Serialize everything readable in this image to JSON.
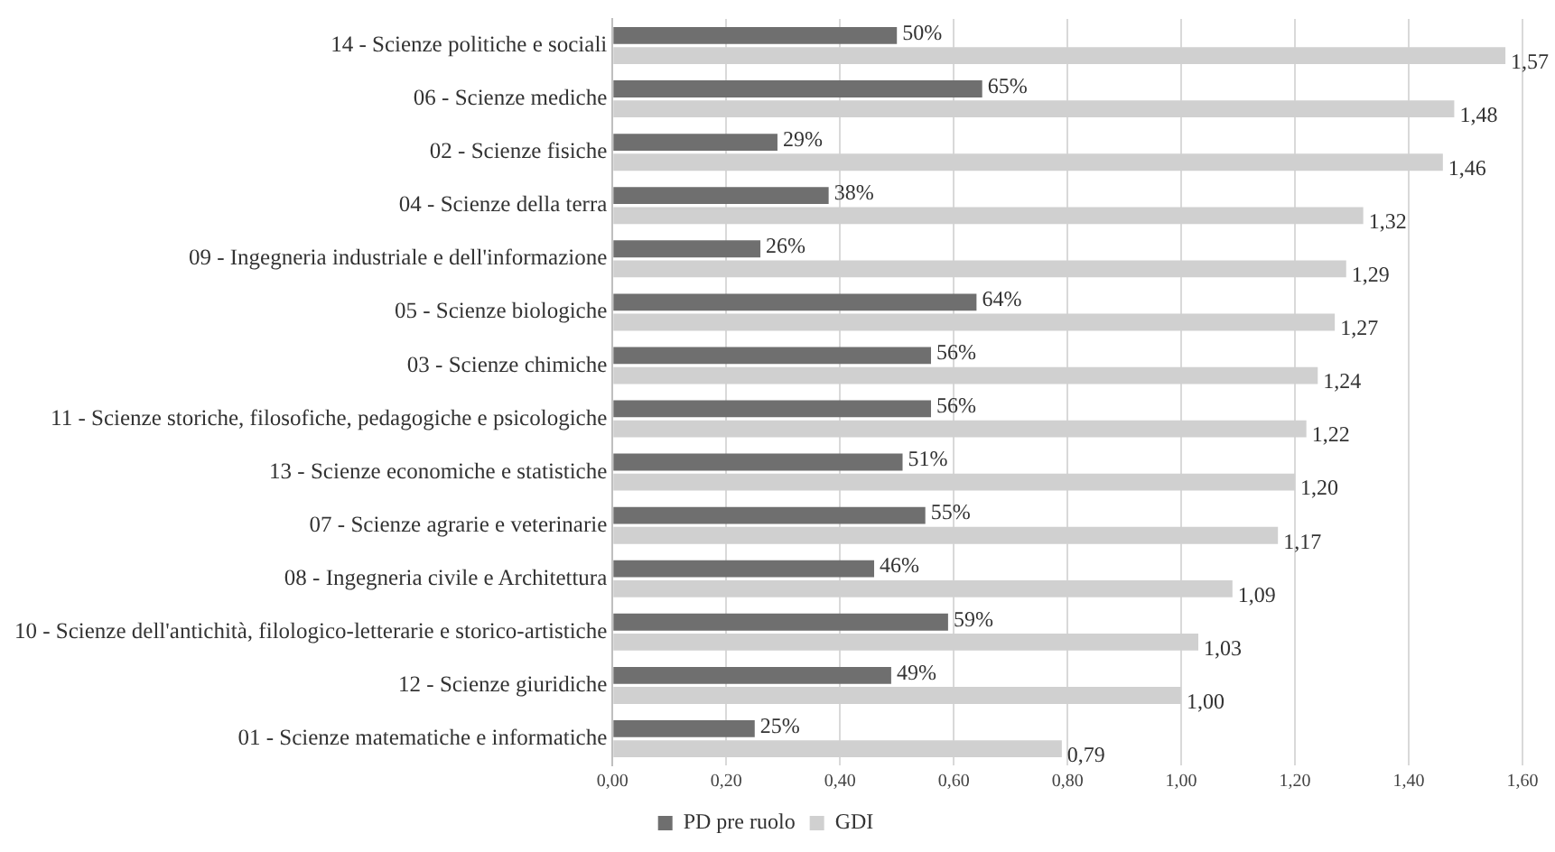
{
  "chart_data": {
    "type": "bar",
    "orientation": "horizontal",
    "categories": [
      "14 - Scienze politiche e sociali",
      "06 - Scienze mediche",
      "02 - Scienze fisiche",
      "04 - Scienze della terra",
      "09 - Ingegneria industriale e dell'informazione",
      "05 - Scienze biologiche",
      "03 - Scienze chimiche",
      "11 - Scienze storiche, filosofiche, pedagogiche e psicologiche",
      "13 - Scienze economiche e statistiche",
      "07 - Scienze agrarie e veterinarie",
      "08 - Ingegneria civile e Architettura",
      "10 - Scienze dell'antichità, filologico-letterarie e storico-artistiche",
      "12 - Scienze giuridiche",
      "01 - Scienze matematiche e informatiche"
    ],
    "series": [
      {
        "name": "PD pre ruolo",
        "color": "#6f6f6f",
        "values": [
          0.5,
          0.65,
          0.29,
          0.38,
          0.26,
          0.64,
          0.56,
          0.56,
          0.51,
          0.55,
          0.46,
          0.59,
          0.49,
          0.25
        ],
        "value_labels": [
          "50%",
          "65%",
          "29%",
          "38%",
          "26%",
          "64%",
          "56%",
          "56%",
          "51%",
          "55%",
          "46%",
          "59%",
          "49%",
          "25%"
        ]
      },
      {
        "name": "GDI",
        "color": "#d0d0d0",
        "values": [
          1.57,
          1.48,
          1.46,
          1.32,
          1.29,
          1.27,
          1.24,
          1.22,
          1.2,
          1.17,
          1.09,
          1.03,
          1.0,
          0.79
        ],
        "value_labels": [
          "1,57",
          "1,48",
          "1,46",
          "1,32",
          "1,29",
          "1,27",
          "1,24",
          "1,22",
          "1,20",
          "1,17",
          "1,09",
          "1,03",
          "1,00",
          "0,79"
        ]
      }
    ],
    "xlim": [
      0,
      1.6
    ],
    "xticks": [
      {
        "value": 0,
        "label": "0,00"
      },
      {
        "value": 0.2,
        "label": "0,20"
      },
      {
        "value": 0.4,
        "label": "0,40"
      },
      {
        "value": 0.6,
        "label": "0,60"
      },
      {
        "value": 0.8,
        "label": "0,80"
      },
      {
        "value": 1.0,
        "label": "1,00"
      },
      {
        "value": 1.2,
        "label": "1,20"
      },
      {
        "value": 1.4,
        "label": "1,40"
      },
      {
        "value": 1.6,
        "label": "1,60"
      }
    ],
    "grid": "x",
    "legend": "bottom"
  }
}
